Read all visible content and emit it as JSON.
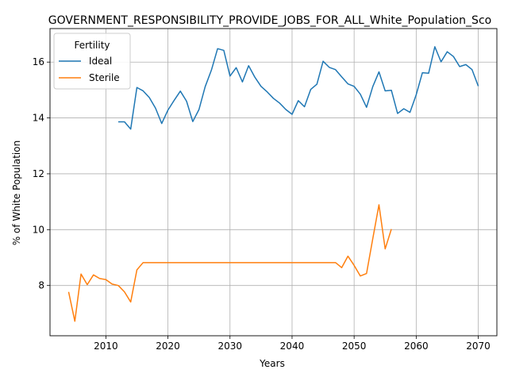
{
  "chart_data": {
    "type": "line",
    "title": "GOVERNMENT_RESPONSIBILITY_PROVIDE_JOBS_FOR_ALL_White_Population_Sco",
    "xlabel": "Years",
    "ylabel": "% of White Population",
    "xlim": [
      2001,
      2073
    ],
    "ylim": [
      6.2,
      17.2
    ],
    "xticks": [
      2010,
      2020,
      2030,
      2040,
      2050,
      2060,
      2070
    ],
    "yticks": [
      8,
      10,
      12,
      14,
      16
    ],
    "grid": true,
    "legend": {
      "title": "Fertility",
      "placement": "top-left"
    },
    "series": [
      {
        "name": "Ideal",
        "color": "#1f77b4",
        "x": [
          2012,
          2013,
          2014,
          2015,
          2016,
          2017,
          2018,
          2019,
          2020,
          2021,
          2022,
          2023,
          2024,
          2025,
          2026,
          2027,
          2028,
          2029,
          2030,
          2031,
          2032,
          2033,
          2034,
          2035,
          2036,
          2037,
          2038,
          2039,
          2040,
          2041,
          2042,
          2043,
          2044,
          2045,
          2046,
          2047,
          2048,
          2049,
          2050,
          2051,
          2052,
          2053,
          2054,
          2055,
          2056,
          2057,
          2058,
          2059,
          2060,
          2061,
          2062,
          2063,
          2064,
          2065,
          2066,
          2067,
          2068,
          2069,
          2070
        ],
        "y": [
          13.86,
          13.86,
          13.6,
          15.09,
          14.97,
          14.73,
          14.35,
          13.8,
          14.28,
          14.63,
          14.96,
          14.6,
          13.87,
          14.3,
          15.12,
          15.71,
          16.48,
          16.42,
          15.5,
          15.8,
          15.29,
          15.87,
          15.46,
          15.13,
          14.93,
          14.7,
          14.53,
          14.3,
          14.13,
          14.62,
          14.4,
          15.02,
          15.21,
          16.03,
          15.81,
          15.73,
          15.47,
          15.22,
          15.13,
          14.85,
          14.38,
          15.12,
          15.65,
          14.97,
          14.99,
          14.16,
          14.33,
          14.2,
          14.83,
          15.62,
          15.6,
          16.55,
          16.01,
          16.37,
          16.2,
          15.84,
          15.91,
          15.73,
          15.14
        ]
      },
      {
        "name": "Sterile",
        "color": "#ff7f0e",
        "x": [
          2004,
          2005,
          2006,
          2007,
          2008,
          2009,
          2010,
          2011,
          2012,
          2013,
          2014,
          2015,
          2016,
          2017,
          2018,
          2019,
          2020,
          2021,
          2022,
          2023,
          2024,
          2025,
          2026,
          2027,
          2028,
          2029,
          2030,
          2031,
          2032,
          2033,
          2034,
          2035,
          2036,
          2037,
          2038,
          2039,
          2040,
          2041,
          2042,
          2043,
          2044,
          2045,
          2046,
          2047,
          2048,
          2049,
          2050,
          2051,
          2052,
          2053,
          2054,
          2055,
          2056
        ],
        "y": [
          7.77,
          6.72,
          8.41,
          8.03,
          8.38,
          8.25,
          8.21,
          8.05,
          8.0,
          7.77,
          7.41,
          8.56,
          8.82,
          8.82,
          8.82,
          8.82,
          8.82,
          8.82,
          8.82,
          8.82,
          8.82,
          8.82,
          8.82,
          8.82,
          8.82,
          8.82,
          8.82,
          8.82,
          8.82,
          8.82,
          8.82,
          8.82,
          8.82,
          8.82,
          8.82,
          8.82,
          8.82,
          8.82,
          8.82,
          8.82,
          8.82,
          8.82,
          8.82,
          8.82,
          8.64,
          9.05,
          8.72,
          8.34,
          8.43,
          9.67,
          10.89,
          9.31,
          10.02
        ]
      }
    ]
  }
}
